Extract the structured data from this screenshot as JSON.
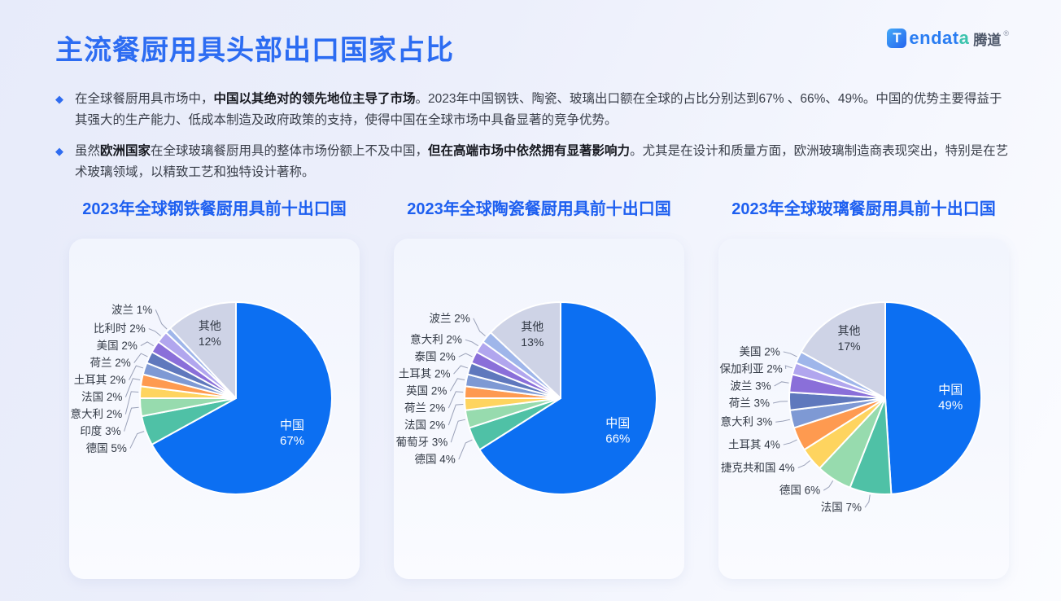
{
  "page": {
    "title": "主流餐厨用具头部出口国家占比"
  },
  "logo": {
    "t": "T",
    "blue": "endat",
    "teal": "a",
    "cjk": "腾道",
    "reg": "®"
  },
  "bullets": [
    {
      "segments": [
        {
          "text": "在全球餐厨用具市场中，",
          "bold": false
        },
        {
          "text": "中国以其绝对的领先地位主导了市场",
          "bold": true
        },
        {
          "text": "。2023年中国钢铁、陶瓷、玻璃出口额在全球的占比分别达到67% 、66%、49%。中国的优势主要得益于其强大的生产能力、低成本制造及政府政策的支持，使得中国在全球市场中具备显著的竞争优势。",
          "bold": false
        }
      ]
    },
    {
      "segments": [
        {
          "text": "虽然",
          "bold": false
        },
        {
          "text": "欧洲国家",
          "bold": true
        },
        {
          "text": "在全球玻璃餐厨用具的整体市场份额上不及中国，",
          "bold": false
        },
        {
          "text": "但在高端市场中依然拥有显著影响力",
          "bold": true
        },
        {
          "text": "。尤其是在设计和质量方面，欧洲玻璃制造商表现突出，特别是在艺术玻璃领域，以精致工艺和独特设计著称。",
          "bold": false
        }
      ]
    }
  ],
  "palette": [
    "#0c6ff2",
    "#4fc1a6",
    "#97dbae",
    "#fed45f",
    "#fe9a50",
    "#7e99d4",
    "#5f78bd",
    "#8a6fd9",
    "#b1a6ee",
    "#9fb6ea",
    "#ced3e6"
  ],
  "chart_data": [
    {
      "type": "pie",
      "title": "2023年全球钢铁餐厨用具前十出口国",
      "unit": "%",
      "legend": false,
      "slices": [
        {
          "label": "中国",
          "value": 67
        },
        {
          "label": "德国",
          "value": 5
        },
        {
          "label": "印度",
          "value": 3
        },
        {
          "label": "意大利",
          "value": 2
        },
        {
          "label": "法国",
          "value": 2
        },
        {
          "label": "土耳其",
          "value": 2
        },
        {
          "label": "荷兰",
          "value": 2
        },
        {
          "label": "美国",
          "value": 2
        },
        {
          "label": "比利时",
          "value": 2
        },
        {
          "label": "波兰",
          "value": 1
        },
        {
          "label": "其他",
          "value": 12
        }
      ]
    },
    {
      "type": "pie",
      "title": "2023年全球陶瓷餐厨用具前十出口国",
      "unit": "%",
      "legend": false,
      "slices": [
        {
          "label": "中国",
          "value": 66
        },
        {
          "label": "德国",
          "value": 4
        },
        {
          "label": "葡萄牙",
          "value": 3
        },
        {
          "label": "法国",
          "value": 2
        },
        {
          "label": "荷兰",
          "value": 2
        },
        {
          "label": "英国",
          "value": 2
        },
        {
          "label": "土耳其",
          "value": 2
        },
        {
          "label": "泰国",
          "value": 2
        },
        {
          "label": "意大利",
          "value": 2
        },
        {
          "label": "波兰",
          "value": 2
        },
        {
          "label": "其他",
          "value": 13
        }
      ]
    },
    {
      "type": "pie",
      "title": "2023年全球玻璃餐厨用具前十出口国",
      "unit": "%",
      "legend": false,
      "slices": [
        {
          "label": "中国",
          "value": 49
        },
        {
          "label": "法国",
          "value": 7
        },
        {
          "label": "德国",
          "value": 6
        },
        {
          "label": "捷克共和国",
          "value": 4
        },
        {
          "label": "土耳其",
          "value": 4
        },
        {
          "label": "意大利",
          "value": 3
        },
        {
          "label": "荷兰",
          "value": 3
        },
        {
          "label": "波兰",
          "value": 3
        },
        {
          "label": "保加利亚",
          "value": 2
        },
        {
          "label": "美国",
          "value": 2
        },
        {
          "label": "其他",
          "value": 17
        }
      ]
    }
  ],
  "colors": {
    "accent": "#2c6cf2",
    "chart_title": "#1d5ff0",
    "china_blue": "#0c6ff2",
    "other_gray": "#ced3e6",
    "text": "#3a3f4a",
    "card_bg": "#f4f6fd"
  }
}
